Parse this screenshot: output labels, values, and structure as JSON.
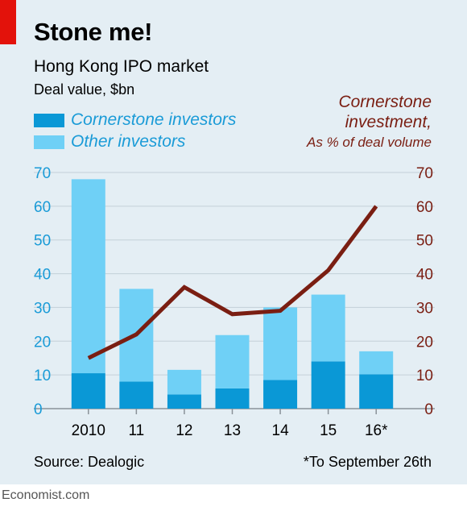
{
  "header": {
    "title": "Stone me!",
    "subtitle": "Hong Kong IPO market",
    "unit": "Deal value, $bn"
  },
  "legend": {
    "cornerstone": "Cornerstone investors",
    "other": "Other investors"
  },
  "right_axis_title": {
    "line1": "Cornerstone",
    "line2": "investment,",
    "line3": "As % of deal volume"
  },
  "footer": {
    "source": "Source: Dealogic",
    "note": "*To September 26th",
    "brand": "Economist.com"
  },
  "colors": {
    "cornerstone": "#0a98d6",
    "other": "#6fd0f6",
    "line": "#7a1e12",
    "left_ticks": "#1a9bd7",
    "right_ticks": "#7a1e12",
    "background": "#e4eef4",
    "accent": "#e3120b"
  },
  "chart_data": {
    "type": "bar",
    "stacked": true,
    "categories": [
      "2010",
      "11",
      "12",
      "13",
      "14",
      "15",
      "16*"
    ],
    "series": [
      {
        "name": "Cornerstone investors",
        "values": [
          10.5,
          8,
          4.2,
          6,
          8.5,
          14,
          10.2
        ]
      },
      {
        "name": "Other investors",
        "values": [
          57.5,
          27.5,
          7.3,
          15.8,
          21.5,
          19.8,
          6.8
        ]
      }
    ],
    "line_series": {
      "name": "Cornerstone investment, As % of deal volume",
      "axis": "right",
      "values": [
        15,
        22,
        36,
        28,
        29,
        41,
        60
      ]
    },
    "ylim": [
      0,
      70
    ],
    "y2lim": [
      0,
      70
    ],
    "yticks": [
      0,
      10,
      20,
      30,
      40,
      50,
      60,
      70
    ],
    "y2ticks": [
      0,
      10,
      20,
      30,
      40,
      50,
      60,
      70
    ],
    "grid": true,
    "legend_position": "top-left"
  }
}
